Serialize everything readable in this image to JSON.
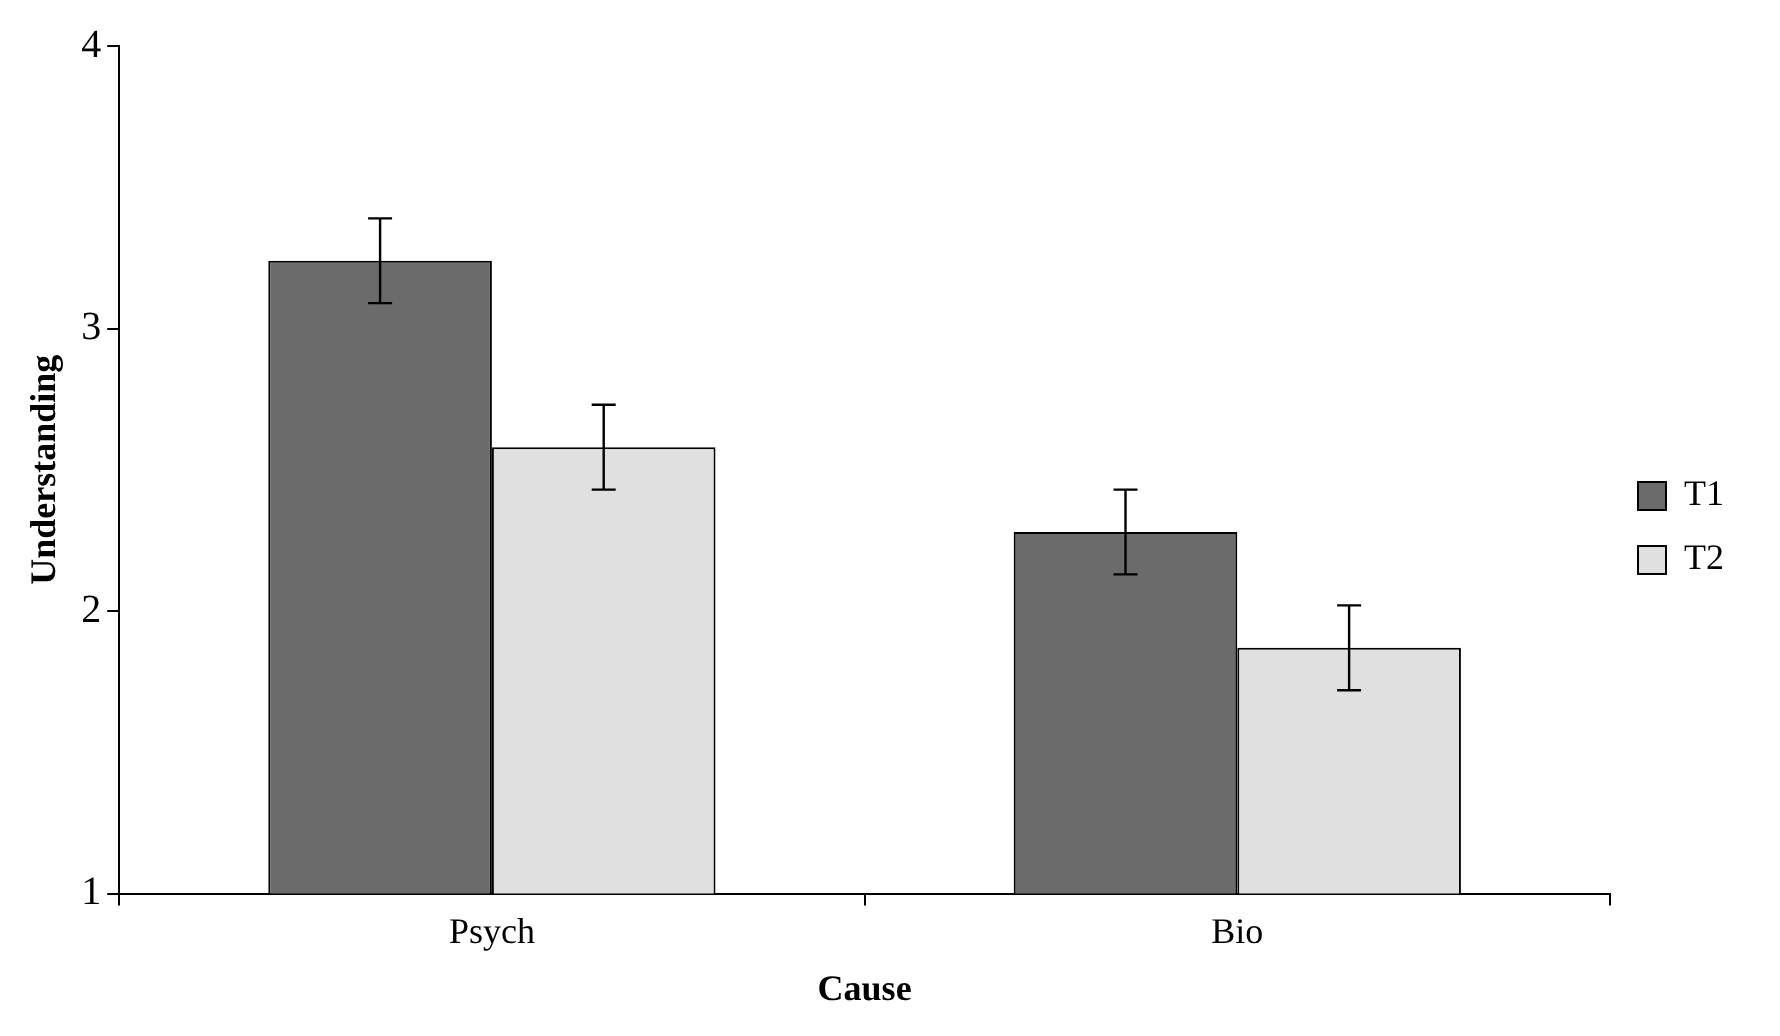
{
  "chart_data": {
    "type": "bar",
    "xlabel": "Cause",
    "ylabel": "Understanding",
    "categories": [
      "Psych",
      "Bio"
    ],
    "series": [
      {
        "name": "T1",
        "color": "#6b6b6b",
        "values": [
          3.24,
          2.28
        ],
        "errors": [
          0.15,
          0.15
        ]
      },
      {
        "name": "T2",
        "color": "#e0e0e0",
        "values": [
          2.58,
          1.87
        ],
        "errors": [
          0.15,
          0.15
        ]
      }
    ],
    "ylim": [
      1,
      4
    ],
    "yticks": [
      1,
      2,
      3,
      4
    ],
    "grid": false,
    "legend": "right"
  }
}
